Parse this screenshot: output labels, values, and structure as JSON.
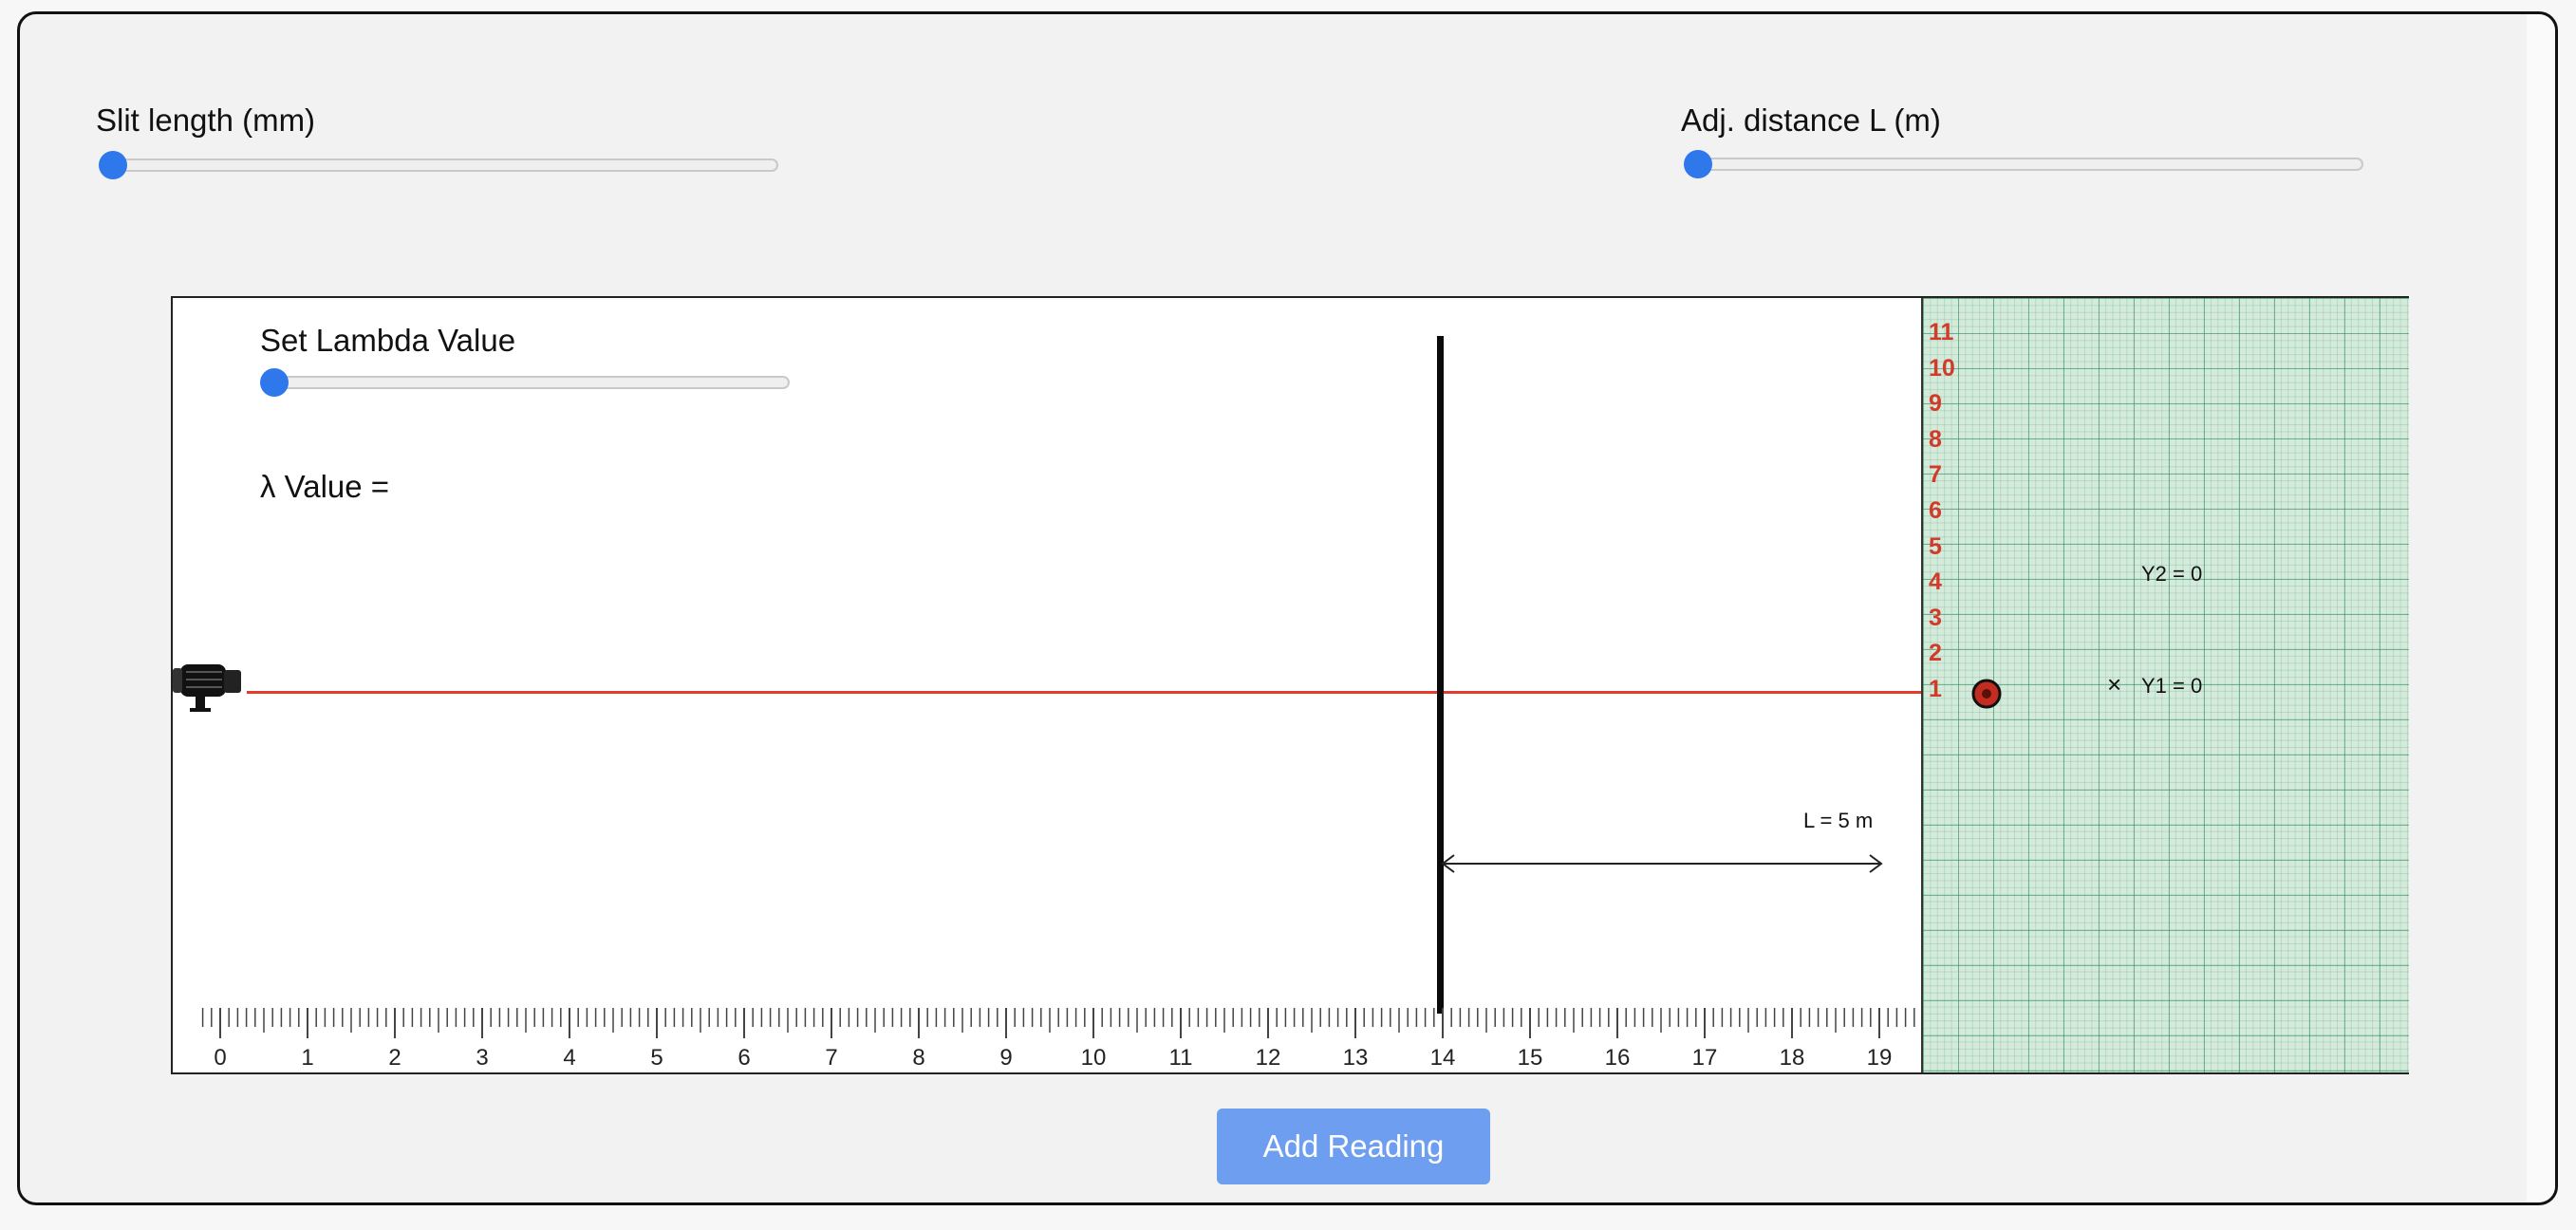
{
  "controls": {
    "slit_length": {
      "label": "Slit length (mm)",
      "value_fraction": 0
    },
    "adj_distance": {
      "label": "Adj. distance L (m)",
      "value_fraction": 0
    },
    "lambda": {
      "label": "Set Lambda Value",
      "value_fraction": 0
    }
  },
  "lambda_readout": "λ Value =",
  "distance_label": "L = 5 m",
  "screen": {
    "y_numbers": [
      "11",
      "10",
      "9",
      "8",
      "7",
      "6",
      "5",
      "4",
      "3",
      "2",
      "1"
    ],
    "y2_label": "Y2 = 0",
    "y1_label": "Y1 = 0",
    "marker": "×"
  },
  "ruler": {
    "numbers": [
      "0",
      "1",
      "2",
      "3",
      "4",
      "5",
      "6",
      "7",
      "8",
      "9",
      "10",
      "11",
      "12",
      "13",
      "14",
      "15",
      "16",
      "17",
      "18",
      "19"
    ]
  },
  "add_button_label": "Add Reading",
  "colors": {
    "accent": "#2f78ec",
    "laser": "#e53b2c",
    "grid_number": "#d23a2a",
    "button": "#6e9ef0"
  }
}
